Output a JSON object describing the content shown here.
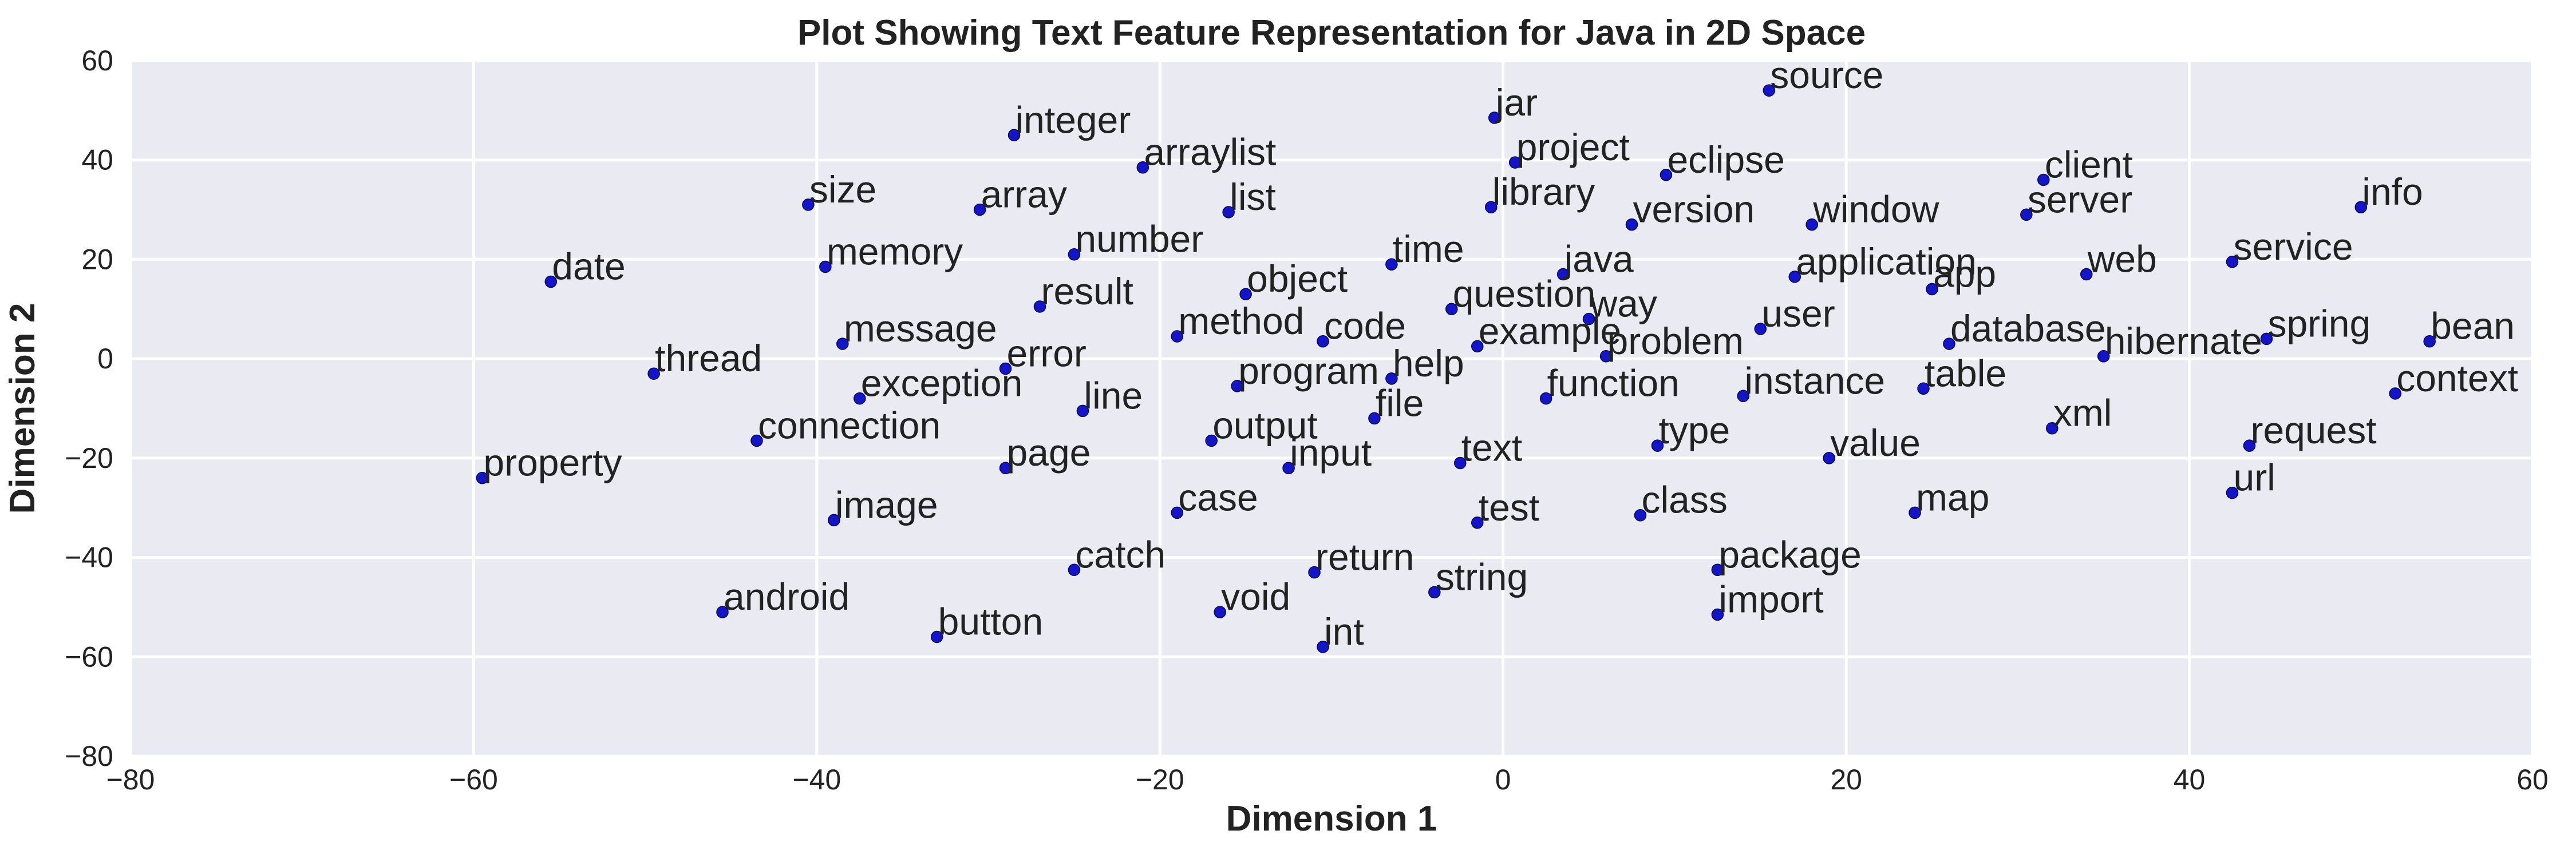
{
  "chart_data": {
    "type": "scatter",
    "title": "Plot Showing Text Feature Representation for Java in 2D Space",
    "xlabel": "Dimension 1",
    "ylabel": "Dimension 2",
    "xlim": [
      -80,
      60
    ],
    "ylim": [
      -80,
      60
    ],
    "xticks": [
      "−80",
      "−60",
      "−40",
      "−20",
      "0",
      "20",
      "40",
      "60"
    ],
    "yticks": [
      "−80",
      "−60",
      "−40",
      "−20",
      "0",
      "20",
      "40",
      "60"
    ],
    "grid": true,
    "background_color": "#eaeaf2",
    "grid_color": "#ffffff",
    "point_color": "#1515c8",
    "points": [
      {
        "label": "jar",
        "x": -0.5,
        "y": 48.5
      },
      {
        "label": "source",
        "x": 15.5,
        "y": 54
      },
      {
        "label": "integer",
        "x": -28.5,
        "y": 45
      },
      {
        "label": "project",
        "x": 0.7,
        "y": 39.5
      },
      {
        "label": "arraylist",
        "x": -21,
        "y": 38.5
      },
      {
        "label": "eclipse",
        "x": 9.5,
        "y": 37
      },
      {
        "label": "client",
        "x": 31.5,
        "y": 36
      },
      {
        "label": "info",
        "x": 50,
        "y": 30.5
      },
      {
        "label": "size",
        "x": -40.5,
        "y": 31
      },
      {
        "label": "array",
        "x": -30.5,
        "y": 30
      },
      {
        "label": "list",
        "x": -16,
        "y": 29.5
      },
      {
        "label": "library",
        "x": -0.7,
        "y": 30.5
      },
      {
        "label": "version",
        "x": 7.5,
        "y": 27
      },
      {
        "label": "window",
        "x": 18,
        "y": 27
      },
      {
        "label": "server",
        "x": 30.5,
        "y": 29
      },
      {
        "label": "service",
        "x": 42.5,
        "y": 19.5
      },
      {
        "label": "number",
        "x": -25,
        "y": 21
      },
      {
        "label": "memory",
        "x": -39.5,
        "y": 18.5
      },
      {
        "label": "time",
        "x": -6.5,
        "y": 19
      },
      {
        "label": "java",
        "x": 3.5,
        "y": 17
      },
      {
        "label": "application",
        "x": 17,
        "y": 16.5
      },
      {
        "label": "app",
        "x": 25,
        "y": 14
      },
      {
        "label": "web",
        "x": 34,
        "y": 17
      },
      {
        "label": "date",
        "x": -55.5,
        "y": 15.5
      },
      {
        "label": "object",
        "x": -15,
        "y": 13
      },
      {
        "label": "result",
        "x": -27,
        "y": 10.5
      },
      {
        "label": "question",
        "x": -3,
        "y": 10
      },
      {
        "label": "way",
        "x": 5,
        "y": 8
      },
      {
        "label": "user",
        "x": 15,
        "y": 6
      },
      {
        "label": "spring",
        "x": 44.5,
        "y": 4
      },
      {
        "label": "bean",
        "x": 54,
        "y": 3.5
      },
      {
        "label": "method",
        "x": -19,
        "y": 4.5
      },
      {
        "label": "code",
        "x": -10.5,
        "y": 3.5
      },
      {
        "label": "example",
        "x": -1.5,
        "y": 2.5
      },
      {
        "label": "problem",
        "x": 6,
        "y": 0.5
      },
      {
        "label": "database",
        "x": 26,
        "y": 3
      },
      {
        "label": "hibernate",
        "x": 35,
        "y": 0.5
      },
      {
        "label": "message",
        "x": -38.5,
        "y": 3
      },
      {
        "label": "error",
        "x": -29,
        "y": -2
      },
      {
        "label": "thread",
        "x": -49.5,
        "y": -3
      },
      {
        "label": "program",
        "x": -15.5,
        "y": -5.5
      },
      {
        "label": "help",
        "x": -6.5,
        "y": -4
      },
      {
        "label": "exception",
        "x": -37.5,
        "y": -8
      },
      {
        "label": "function",
        "x": 2.5,
        "y": -8
      },
      {
        "label": "instance",
        "x": 14,
        "y": -7.5
      },
      {
        "label": "table",
        "x": 24.5,
        "y": -6
      },
      {
        "label": "context",
        "x": 52,
        "y": -7
      },
      {
        "label": "line",
        "x": -24.5,
        "y": -10.5
      },
      {
        "label": "file",
        "x": -7.5,
        "y": -12
      },
      {
        "label": "xml",
        "x": 32,
        "y": -14
      },
      {
        "label": "connection",
        "x": -43.5,
        "y": -16.5
      },
      {
        "label": "output",
        "x": -17,
        "y": -16.5
      },
      {
        "label": "type",
        "x": 9,
        "y": -17.5
      },
      {
        "label": "request",
        "x": 43.5,
        "y": -17.5
      },
      {
        "label": "page",
        "x": -29,
        "y": -22
      },
      {
        "label": "input",
        "x": -12.5,
        "y": -22
      },
      {
        "label": "text",
        "x": -2.5,
        "y": -21
      },
      {
        "label": "value",
        "x": 19,
        "y": -20
      },
      {
        "label": "property",
        "x": -59.5,
        "y": -24
      },
      {
        "label": "url",
        "x": 42.5,
        "y": -27
      },
      {
        "label": "image",
        "x": -39,
        "y": -32.5
      },
      {
        "label": "case",
        "x": -19,
        "y": -31
      },
      {
        "label": "test",
        "x": -1.5,
        "y": -33
      },
      {
        "label": "class",
        "x": 8,
        "y": -31.5
      },
      {
        "label": "map",
        "x": 24,
        "y": -31
      },
      {
        "label": "catch",
        "x": -25,
        "y": -42.5
      },
      {
        "label": "return",
        "x": -11,
        "y": -43
      },
      {
        "label": "package",
        "x": 12.5,
        "y": -42.5
      },
      {
        "label": "string",
        "x": -4,
        "y": -47
      },
      {
        "label": "android",
        "x": -45.5,
        "y": -51
      },
      {
        "label": "void",
        "x": -16.5,
        "y": -51
      },
      {
        "label": "import",
        "x": 12.5,
        "y": -51.5
      },
      {
        "label": "button",
        "x": -33,
        "y": -56
      },
      {
        "label": "int",
        "x": -10.5,
        "y": -58
      }
    ]
  }
}
